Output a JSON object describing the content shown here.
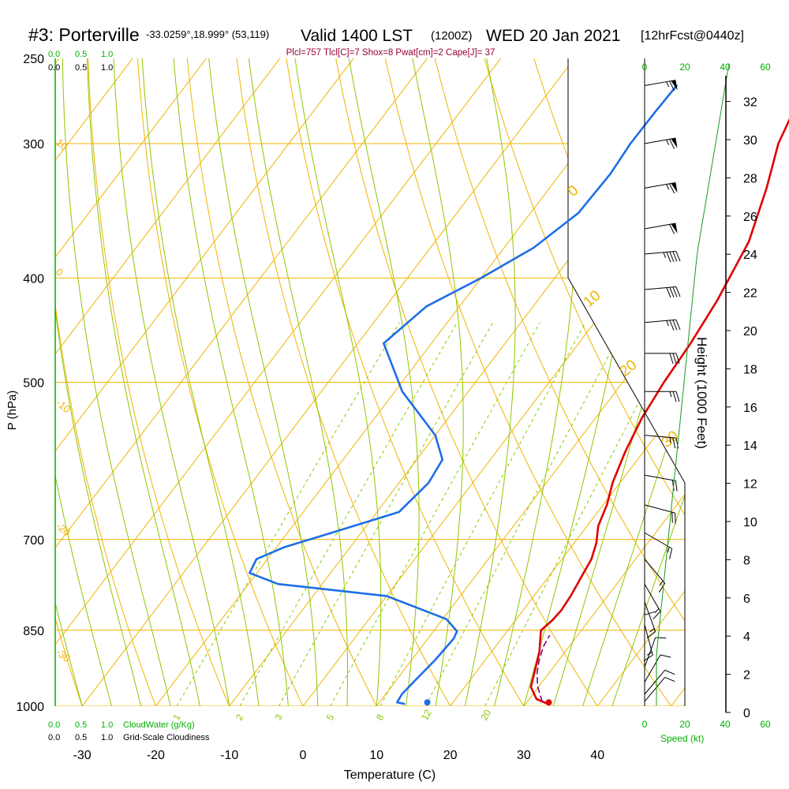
{
  "header": {
    "station": "#3: Porterville",
    "coords": "-33.0259°,18.999° (53,119)",
    "valid": "Valid 1400 LST",
    "zulu": "(1200Z)",
    "date": "WED 20 Jan 2021",
    "forecast": "[12hrFcst@0440z]",
    "indices": "Plcl=757 Tlcl[C]=7 Shox=8 Pwat[cm]=2 Cape[J]= 37"
  },
  "colors": {
    "isotherm": "#f0b400",
    "dry_adiabat": "#f0b400",
    "moist_adiabat": "#8cc800",
    "mixing_ratio": "#8cc800",
    "temperature": "#e00000",
    "dewpoint": "#1e6ee6",
    "parcel": "#800080",
    "height": "#1a9a1a",
    "header_accent": "#990033",
    "green_label": "#00b000",
    "text": "#000000"
  },
  "chart_data": {
    "type": "line",
    "title": "#3: Porterville",
    "xlabel": "Temperature (C)",
    "ylabel": "P (hPa)",
    "xlim": [
      -35,
      45
    ],
    "ylim": [
      1000,
      250
    ],
    "x_ticks": [
      -30,
      -20,
      -10,
      0,
      10,
      20,
      30,
      40
    ],
    "p_ticks": [
      1000,
      850,
      700,
      500,
      400,
      300,
      250
    ],
    "isobars": [
      1000,
      850,
      700,
      500,
      400,
      300
    ],
    "dry_adiabat_labels": [
      "10",
      "0",
      "-10",
      "-20",
      "-30"
    ],
    "moist_adiabat_labels": [
      "0",
      "10",
      "20",
      "30"
    ],
    "mixing_ratio_labels": [
      "1",
      "2",
      "3",
      "5",
      "8",
      "12",
      "20"
    ],
    "series": [
      {
        "name": "Temperature",
        "points": [
          [
            33,
            995
          ],
          [
            31,
            985
          ],
          [
            29,
            960
          ],
          [
            26.5,
            890
          ],
          [
            25,
            860
          ],
          [
            24.5,
            850
          ],
          [
            25,
            832
          ],
          [
            25.2,
            815
          ],
          [
            25,
            790
          ],
          [
            24.5,
            760
          ],
          [
            24,
            730
          ],
          [
            23,
            705
          ],
          [
            21.5,
            680
          ],
          [
            20.5,
            650
          ],
          [
            19,
            620
          ],
          [
            17.5,
            580
          ],
          [
            16.3,
            540
          ],
          [
            15.6,
            500
          ],
          [
            15.2,
            460
          ],
          [
            14.4,
            420
          ],
          [
            12.6,
            370
          ],
          [
            9.5,
            330
          ],
          [
            6.5,
            300
          ],
          [
            5.2,
            280
          ],
          [
            4.2,
            265
          ]
        ]
      },
      {
        "name": "Dewpoint",
        "points": [
          [
            13.5,
            995
          ],
          [
            12.4,
            992
          ],
          [
            12.2,
            975
          ],
          [
            12.6,
            945
          ],
          [
            13.2,
            905
          ],
          [
            13.5,
            865
          ],
          [
            13.2,
            852
          ],
          [
            10.5,
            830
          ],
          [
            0,
            790
          ],
          [
            -16,
            770
          ],
          [
            -21,
            752
          ],
          [
            -21.5,
            730
          ],
          [
            -19,
            712
          ],
          [
            -14,
            690
          ],
          [
            -7,
            660
          ],
          [
            -6,
            620
          ],
          [
            -6.5,
            590
          ],
          [
            -10,
            560
          ],
          [
            -19,
            510
          ],
          [
            -26.5,
            460
          ],
          [
            -24.5,
            425
          ],
          [
            -20,
            400
          ],
          [
            -16,
            375
          ],
          [
            -13.5,
            348
          ],
          [
            -13.2,
            320
          ],
          [
            -13.6,
            300
          ],
          [
            -13.5,
            280
          ],
          [
            -13.3,
            265
          ]
        ]
      },
      {
        "name": "Parcel",
        "points": [
          [
            32,
            990
          ],
          [
            29.8,
            958
          ],
          [
            28.3,
            930
          ],
          [
            27.3,
            905
          ],
          [
            26.5,
            880
          ],
          [
            26.2,
            860
          ]
        ]
      }
    ],
    "surface": {
      "temperature": 33,
      "dewpoint": 16.5,
      "pressure": 992
    },
    "wind": {
      "speed_axis_label": "Speed (kt)",
      "speed_ticks": [
        0,
        20,
        40,
        60
      ],
      "barbs": [
        {
          "p": 265,
          "dir": 260,
          "spd": 65
        },
        {
          "p": 300,
          "dir": 260,
          "spd": 65
        },
        {
          "p": 330,
          "dir": 260,
          "spd": 65
        },
        {
          "p": 360,
          "dir": 260,
          "spd": 60
        },
        {
          "p": 380,
          "dir": 265,
          "spd": 45
        },
        {
          "p": 410,
          "dir": 265,
          "spd": 40
        },
        {
          "p": 440,
          "dir": 265,
          "spd": 35
        },
        {
          "p": 470,
          "dir": 270,
          "spd": 30
        },
        {
          "p": 510,
          "dir": 270,
          "spd": 25
        },
        {
          "p": 560,
          "dir": 275,
          "spd": 25
        },
        {
          "p": 610,
          "dir": 280,
          "spd": 20
        },
        {
          "p": 650,
          "dir": 285,
          "spd": 20
        },
        {
          "p": 690,
          "dir": 300,
          "spd": 15
        },
        {
          "p": 730,
          "dir": 320,
          "spd": 15
        },
        {
          "p": 770,
          "dir": 330,
          "spd": 15
        },
        {
          "p": 800,
          "dir": 340,
          "spd": 15
        },
        {
          "p": 840,
          "dir": 345,
          "spd": 15
        },
        {
          "p": 880,
          "dir": 180,
          "spd": 10
        },
        {
          "p": 920,
          "dir": 200,
          "spd": 10
        },
        {
          "p": 950,
          "dir": 210,
          "spd": 10
        },
        {
          "p": 975,
          "dir": 220,
          "spd": 10
        },
        {
          "p": 990,
          "dir": 220,
          "spd": 10
        }
      ]
    },
    "height_axis": {
      "label": "Height (1000 Feet)",
      "ticks": [
        0,
        2,
        4,
        6,
        8,
        10,
        12,
        14,
        16,
        18,
        20,
        22,
        24,
        26,
        28,
        30,
        32
      ]
    },
    "cloud_scales": {
      "top_green": [
        "0.0",
        "0.5",
        "1.0"
      ],
      "top_black": [
        "0.0",
        "0.5",
        "1.0"
      ],
      "bottom_green": [
        "0.0",
        "0.5",
        "1.0"
      ],
      "bottom_black": [
        "0.0",
        "0.5",
        "1.0"
      ],
      "cloud_water_label": "CloudWater (g/Kg)",
      "cloudiness_label": "Grid-Scale Cloudiness"
    }
  }
}
